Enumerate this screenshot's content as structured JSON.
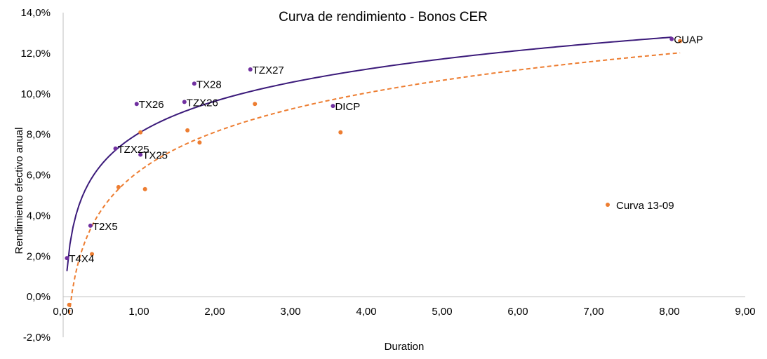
{
  "chart_data": {
    "type": "scatter",
    "title": "Curva de rendimiento - Bonos CER",
    "xlabel": "Duration",
    "ylabel": "Rendimiento efectivo anual",
    "xlim": [
      0,
      9
    ],
    "ylim": [
      -2,
      14
    ],
    "x_ticks": [
      "0,00",
      "1,00",
      "2,00",
      "3,00",
      "4,00",
      "5,00",
      "6,00",
      "7,00",
      "8,00",
      "9,00"
    ],
    "y_ticks": [
      "-2,0%",
      "0,0%",
      "2,0%",
      "4,0%",
      "6,0%",
      "8,0%",
      "10,0%",
      "12,0%",
      "14,0%"
    ],
    "x_tick_values": [
      0,
      1,
      2,
      3,
      4,
      5,
      6,
      7,
      8,
      9
    ],
    "y_tick_values": [
      -2,
      0,
      2,
      4,
      6,
      8,
      10,
      12,
      14
    ],
    "grid": false,
    "legend_position": "right",
    "series": [
      {
        "color": "#7030a0",
        "trendline": "logarithmic",
        "trend_color": "#3b1a7a",
        "points": [
          {
            "label": "T4X4",
            "x": 0.05,
            "y": 1.9
          },
          {
            "label": "T2X5",
            "x": 0.36,
            "y": 3.5
          },
          {
            "label": "TZX25",
            "x": 0.69,
            "y": 7.3
          },
          {
            "label": "TX26",
            "x": 0.97,
            "y": 9.5
          },
          {
            "label": "TX25",
            "x": 1.02,
            "y": 7.0
          },
          {
            "label": "TZX26",
            "x": 1.6,
            "y": 9.6
          },
          {
            "label": "TX28",
            "x": 1.73,
            "y": 10.5
          },
          {
            "label": "TZX27",
            "x": 2.47,
            "y": 11.2
          },
          {
            "label": "DICP",
            "x": 3.56,
            "y": 9.4
          },
          {
            "label": "CUAP",
            "x": 8.03,
            "y": 12.7
          }
        ]
      },
      {
        "name": "Curva 13-09",
        "color": "#ed7d31",
        "trendline": "logarithmic",
        "trend_color": "#ed7d31",
        "points": [
          {
            "x": 0.08,
            "y": -0.4
          },
          {
            "x": 0.38,
            "y": 2.1
          },
          {
            "x": 0.73,
            "y": 5.4
          },
          {
            "x": 1.02,
            "y": 8.1
          },
          {
            "x": 1.08,
            "y": 5.3
          },
          {
            "x": 1.64,
            "y": 8.2
          },
          {
            "x": 1.8,
            "y": 7.6
          },
          {
            "x": 2.53,
            "y": 9.5
          },
          {
            "x": 3.66,
            "y": 8.1
          },
          {
            "x": 8.14,
            "y": 12.6
          }
        ]
      }
    ]
  }
}
